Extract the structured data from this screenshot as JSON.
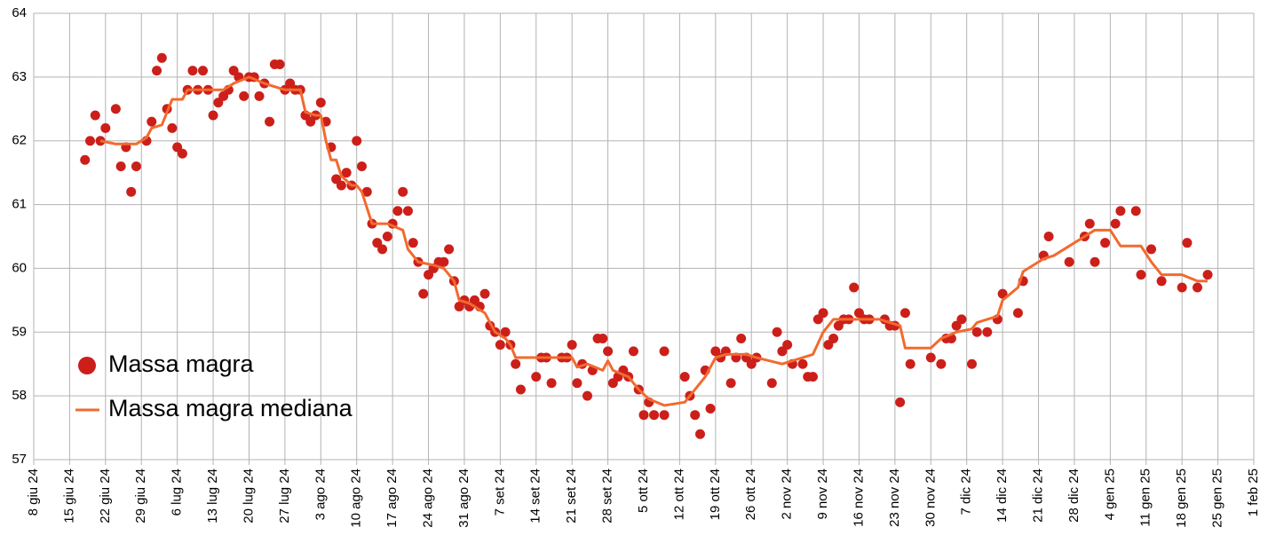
{
  "chart_data": {
    "type": "combo",
    "xlim": [
      "2024-06-08",
      "2025-02-01"
    ],
    "xticks": [
      {
        "value": "2024-06-08",
        "label": "8 giu 24"
      },
      {
        "value": "2024-06-15",
        "label": "15 giu 24"
      },
      {
        "value": "2024-06-22",
        "label": "22 giu 24"
      },
      {
        "value": "2024-06-29",
        "label": "29 giu 24"
      },
      {
        "value": "2024-07-06",
        "label": "6 lug 24"
      },
      {
        "value": "2024-07-13",
        "label": "13 lug 24"
      },
      {
        "value": "2024-07-20",
        "label": "20 lug 24"
      },
      {
        "value": "2024-07-27",
        "label": "27 lug 24"
      },
      {
        "value": "2024-08-03",
        "label": "3 ago 24"
      },
      {
        "value": "2024-08-10",
        "label": "10 ago 24"
      },
      {
        "value": "2024-08-17",
        "label": "17 ago 24"
      },
      {
        "value": "2024-08-24",
        "label": "24 ago 24"
      },
      {
        "value": "2024-08-31",
        "label": "31 ago 24"
      },
      {
        "value": "2024-09-07",
        "label": "7 set 24"
      },
      {
        "value": "2024-09-14",
        "label": "14 set 24"
      },
      {
        "value": "2024-09-21",
        "label": "21 set 24"
      },
      {
        "value": "2024-09-28",
        "label": "28 set 24"
      },
      {
        "value": "2024-10-05",
        "label": "5 ott 24"
      },
      {
        "value": "2024-10-12",
        "label": "12 ott 24"
      },
      {
        "value": "2024-10-19",
        "label": "19 ott 24"
      },
      {
        "value": "2024-10-26",
        "label": "26 ott 24"
      },
      {
        "value": "2024-11-02",
        "label": "2 nov 24"
      },
      {
        "value": "2024-11-09",
        "label": "9 nov 24"
      },
      {
        "value": "2024-11-16",
        "label": "16 nov 24"
      },
      {
        "value": "2024-11-23",
        "label": "23 nov 24"
      },
      {
        "value": "2024-11-30",
        "label": "30 nov 24"
      },
      {
        "value": "2024-12-07",
        "label": "7 dic 24"
      },
      {
        "value": "2024-12-14",
        "label": "14 dic 24"
      },
      {
        "value": "2024-12-21",
        "label": "21 dic 24"
      },
      {
        "value": "2024-12-28",
        "label": "28 dic 24"
      },
      {
        "value": "2025-01-04",
        "label": "4 gen 25"
      },
      {
        "value": "2025-01-11",
        "label": "11 gen 25"
      },
      {
        "value": "2025-01-18",
        "label": "18 gen 25"
      },
      {
        "value": "2025-01-25",
        "label": "25 gen 25"
      },
      {
        "value": "2025-02-01",
        "label": "1 feb 25"
      }
    ],
    "ylim": [
      57,
      64
    ],
    "yticks": [
      57,
      58,
      59,
      60,
      61,
      62,
      63,
      64
    ],
    "grid": true,
    "legend": "lower left",
    "series": [
      {
        "name": "Massa magra",
        "type": "scatter",
        "color": "#cc1f1a",
        "x": [
          "2024-06-18",
          "2024-06-19",
          "2024-06-20",
          "2024-06-21",
          "2024-06-22",
          "2024-06-24",
          "2024-06-25",
          "2024-06-26",
          "2024-06-27",
          "2024-06-28",
          "2024-06-30",
          "2024-07-01",
          "2024-07-02",
          "2024-07-03",
          "2024-07-04",
          "2024-07-05",
          "2024-07-06",
          "2024-07-07",
          "2024-07-08",
          "2024-07-09",
          "2024-07-10",
          "2024-07-11",
          "2024-07-12",
          "2024-07-13",
          "2024-07-14",
          "2024-07-15",
          "2024-07-16",
          "2024-07-17",
          "2024-07-18",
          "2024-07-19",
          "2024-07-20",
          "2024-07-21",
          "2024-07-22",
          "2024-07-23",
          "2024-07-24",
          "2024-07-25",
          "2024-07-26",
          "2024-07-27",
          "2024-07-28",
          "2024-07-29",
          "2024-07-30",
          "2024-07-31",
          "2024-08-01",
          "2024-08-02",
          "2024-08-03",
          "2024-08-04",
          "2024-08-05",
          "2024-08-06",
          "2024-08-07",
          "2024-08-08",
          "2024-08-09",
          "2024-08-10",
          "2024-08-11",
          "2024-08-12",
          "2024-08-13",
          "2024-08-14",
          "2024-08-15",
          "2024-08-16",
          "2024-08-17",
          "2024-08-18",
          "2024-08-19",
          "2024-08-20",
          "2024-08-21",
          "2024-08-22",
          "2024-08-23",
          "2024-08-24",
          "2024-08-25",
          "2024-08-26",
          "2024-08-27",
          "2024-08-28",
          "2024-08-29",
          "2024-08-30",
          "2024-08-31",
          "2024-09-01",
          "2024-09-02",
          "2024-09-03",
          "2024-09-04",
          "2024-09-05",
          "2024-09-06",
          "2024-09-07",
          "2024-09-08",
          "2024-09-09",
          "2024-09-10",
          "2024-09-11",
          "2024-09-14",
          "2024-09-15",
          "2024-09-16",
          "2024-09-17",
          "2024-09-19",
          "2024-09-20",
          "2024-09-21",
          "2024-09-22",
          "2024-09-23",
          "2024-09-24",
          "2024-09-25",
          "2024-09-26",
          "2024-09-27",
          "2024-09-28",
          "2024-09-29",
          "2024-09-30",
          "2024-10-01",
          "2024-10-02",
          "2024-10-03",
          "2024-10-04",
          "2024-10-05",
          "2024-10-06",
          "2024-10-07",
          "2024-10-09",
          "2024-10-09",
          "2024-10-13",
          "2024-10-14",
          "2024-10-15",
          "2024-10-16",
          "2024-10-17",
          "2024-10-18",
          "2024-10-19",
          "2024-10-20",
          "2024-10-21",
          "2024-10-22",
          "2024-10-23",
          "2024-10-24",
          "2024-10-25",
          "2024-10-26",
          "2024-10-27",
          "2024-10-30",
          "2024-10-31",
          "2024-11-01",
          "2024-11-02",
          "2024-11-03",
          "2024-11-05",
          "2024-11-06",
          "2024-11-07",
          "2024-11-08",
          "2024-11-09",
          "2024-11-10",
          "2024-11-11",
          "2024-11-12",
          "2024-11-13",
          "2024-11-14",
          "2024-11-15",
          "2024-11-16",
          "2024-11-17",
          "2024-11-18",
          "2024-11-21",
          "2024-11-22",
          "2024-11-23",
          "2024-11-24",
          "2024-11-25",
          "2024-11-26",
          "2024-11-30",
          "2024-12-02",
          "2024-12-03",
          "2024-12-04",
          "2024-12-05",
          "2024-12-06",
          "2024-12-08",
          "2024-12-09",
          "2024-12-11",
          "2024-12-13",
          "2024-12-14",
          "2024-12-17",
          "2024-12-18",
          "2024-12-22",
          "2024-12-23",
          "2024-12-27",
          "2024-12-30",
          "2024-12-31",
          "2025-01-01",
          "2025-01-03",
          "2025-01-05",
          "2025-01-06",
          "2025-01-09",
          "2025-01-10",
          "2025-01-12",
          "2025-01-14",
          "2025-01-18",
          "2025-01-19",
          "2025-01-21",
          "2025-01-23"
        ],
        "values": [
          61.7,
          62.0,
          62.4,
          62.0,
          62.2,
          62.5,
          61.6,
          61.9,
          61.2,
          61.6,
          62.0,
          62.3,
          63.1,
          63.3,
          62.5,
          62.2,
          61.9,
          61.8,
          62.8,
          63.1,
          62.8,
          63.1,
          62.8,
          62.4,
          62.6,
          62.7,
          62.8,
          63.1,
          63.0,
          62.7,
          63.0,
          63.0,
          62.7,
          62.9,
          62.3,
          63.2,
          63.2,
          62.8,
          62.9,
          62.8,
          62.8,
          62.4,
          62.3,
          62.4,
          62.6,
          62.3,
          61.9,
          61.4,
          61.3,
          61.5,
          61.3,
          62.0,
          61.6,
          61.2,
          60.7,
          60.4,
          60.3,
          60.5,
          60.7,
          60.9,
          61.2,
          60.9,
          60.4,
          60.1,
          59.6,
          59.9,
          60.0,
          60.1,
          60.1,
          60.3,
          59.8,
          59.4,
          59.5,
          59.4,
          59.5,
          59.4,
          59.6,
          59.1,
          59.0,
          58.8,
          59.0,
          58.8,
          58.5,
          58.1,
          58.3,
          58.6,
          58.6,
          58.2,
          58.6,
          58.6,
          58.8,
          58.2,
          58.5,
          58.0,
          58.4,
          58.9,
          58.9,
          58.7,
          58.2,
          58.3,
          58.4,
          58.3,
          58.7,
          58.1,
          57.7,
          57.9,
          57.7,
          57.7,
          58.7,
          58.3,
          58.0,
          57.7,
          57.4,
          58.4,
          57.8,
          58.7,
          58.6,
          58.7,
          58.2,
          58.6,
          58.9,
          58.6,
          58.5,
          58.6,
          58.2,
          59.0,
          58.7,
          58.8,
          58.5,
          58.5,
          58.3,
          58.3,
          59.2,
          59.3,
          58.8,
          58.9,
          59.1,
          59.2,
          59.2,
          59.7,
          59.3,
          59.2,
          59.2,
          59.2,
          59.1,
          59.1,
          57.9,
          59.3,
          58.5,
          58.6,
          58.5,
          58.9,
          58.9,
          59.1,
          59.2,
          58.5,
          59.0,
          59.0,
          59.2,
          59.6,
          59.3,
          59.8,
          60.2,
          60.5,
          60.1,
          60.5,
          60.7,
          60.1,
          60.4,
          60.7,
          60.9,
          60.9,
          59.9,
          60.3,
          59.8,
          59.7,
          60.4,
          59.7,
          59.9
        ]
      },
      {
        "name": "Massa magra mediana",
        "type": "line",
        "color": "#f26a2e",
        "x": [
          "2024-06-21",
          "2024-06-24",
          "2024-06-26",
          "2024-06-28",
          "2024-06-30",
          "2024-07-01",
          "2024-07-03",
          "2024-07-04",
          "2024-07-05",
          "2024-07-07",
          "2024-07-08",
          "2024-07-12",
          "2024-07-15",
          "2024-07-17",
          "2024-07-20",
          "2024-07-23",
          "2024-07-25",
          "2024-07-27",
          "2024-07-30",
          "2024-07-31",
          "2024-08-02",
          "2024-08-03",
          "2024-08-04",
          "2024-08-05",
          "2024-08-06",
          "2024-08-07",
          "2024-08-09",
          "2024-08-10",
          "2024-08-11",
          "2024-08-12",
          "2024-08-13",
          "2024-08-16",
          "2024-08-19",
          "2024-08-20",
          "2024-08-22",
          "2024-08-25",
          "2024-08-27",
          "2024-08-28",
          "2024-08-29",
          "2024-08-30",
          "2024-09-01",
          "2024-09-04",
          "2024-09-06",
          "2024-09-08",
          "2024-09-09",
          "2024-09-10",
          "2024-09-14",
          "2024-09-21",
          "2024-09-22",
          "2024-09-24",
          "2024-09-27",
          "2024-09-28",
          "2024-09-29",
          "2024-10-02",
          "2024-10-04",
          "2024-10-06",
          "2024-10-09",
          "2024-10-13",
          "2024-10-15",
          "2024-10-17",
          "2024-10-19",
          "2024-10-21",
          "2024-10-25",
          "2024-10-27",
          "2024-11-01",
          "2024-11-05",
          "2024-11-07",
          "2024-11-09",
          "2024-11-11",
          "2024-11-16",
          "2024-11-20",
          "2024-11-22",
          "2024-11-24",
          "2024-11-25",
          "2024-11-30",
          "2024-12-02",
          "2024-12-05",
          "2024-12-08",
          "2024-12-09",
          "2024-12-13",
          "2024-12-14",
          "2024-12-17",
          "2024-12-18",
          "2024-12-22",
          "2024-12-24",
          "2024-12-28",
          "2024-12-30",
          "2025-01-01",
          "2025-01-04",
          "2025-01-06",
          "2025-01-10",
          "2025-01-12",
          "2025-01-14",
          "2025-01-18",
          "2025-01-21",
          "2025-01-23"
        ],
        "values": [
          62.0,
          61.95,
          61.95,
          61.95,
          62.05,
          62.2,
          62.25,
          62.45,
          62.65,
          62.65,
          62.8,
          62.8,
          62.8,
          62.9,
          63.0,
          62.9,
          62.85,
          62.8,
          62.8,
          62.45,
          62.4,
          62.4,
          62.0,
          61.7,
          61.7,
          61.45,
          61.3,
          61.3,
          61.2,
          60.95,
          60.7,
          60.7,
          60.6,
          60.3,
          60.1,
          60.05,
          60.0,
          59.9,
          59.8,
          59.5,
          59.45,
          59.3,
          59.0,
          58.9,
          58.8,
          58.6,
          58.6,
          58.6,
          58.45,
          58.5,
          58.4,
          58.55,
          58.4,
          58.3,
          58.1,
          57.95,
          57.85,
          57.9,
          58.1,
          58.3,
          58.6,
          58.65,
          58.65,
          58.6,
          58.5,
          58.6,
          58.65,
          59.0,
          59.2,
          59.2,
          59.2,
          59.15,
          59.1,
          58.75,
          58.75,
          58.9,
          59.0,
          59.05,
          59.15,
          59.25,
          59.5,
          59.7,
          59.95,
          60.15,
          60.2,
          60.4,
          60.5,
          60.6,
          60.6,
          60.35,
          60.35,
          60.1,
          59.9,
          59.9,
          59.8,
          59.8
        ]
      }
    ]
  }
}
